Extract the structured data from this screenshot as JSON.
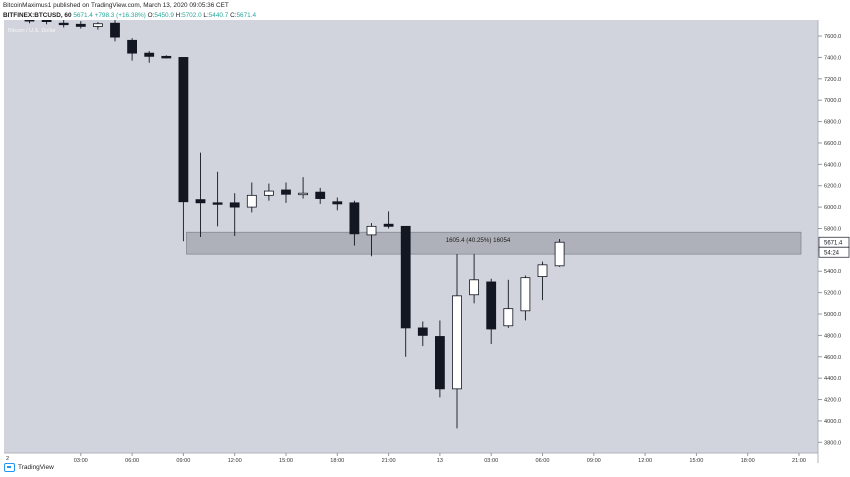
{
  "header": {
    "line1": "BitcoinMaximus1 published on TradingView.com, March 13, 2020 09:05:36 CET",
    "symbol": "BITFINEX:BTCUSD, 60",
    "last": "5671.4",
    "change": "+798.3 (+16.38%)",
    "open_label": "O:",
    "open_value": "5450.9",
    "high_label": "H:",
    "high_value": "5702.0",
    "low_label": "L:",
    "low_value": "5440.7",
    "close_label": "C:",
    "close_value": "5671.4"
  },
  "footer": {
    "brand": "TradingView"
  },
  "colors": {
    "background": "#d1d4dc",
    "bull": "#ffffff",
    "bear": "#131722",
    "zone": "#a8abb3",
    "price_tag": "#ffffff"
  },
  "chart_data": {
    "type": "candlestick",
    "title": "",
    "series_label": "Bitcoin / U.S. Dollar",
    "y_ticks": [
      3800,
      4000,
      4200,
      4400,
      4600,
      4800,
      5000,
      5200,
      5400,
      5600,
      5800,
      6000,
      6200,
      6400,
      6600,
      6800,
      7000,
      7200,
      7400,
      7600
    ],
    "y_tick_labels": [
      "3800.0",
      "4000.0",
      "4200.0",
      "4400.0",
      "4600.0",
      "4800.0",
      "5000.0",
      "5200.0",
      "5400.0",
      "5600.0",
      "5800.0",
      "6000.0",
      "6200.0",
      "6400.0",
      "6600.0",
      "6800.0",
      "7000.0",
      "7200.0",
      "7400.0",
      "7600.0"
    ],
    "ylim": [
      3700,
      7750
    ],
    "x_ticks": [
      {
        "label": "03:00",
        "index": 3
      },
      {
        "label": "06:00",
        "index": 6
      },
      {
        "label": "09:00",
        "index": 9
      },
      {
        "label": "12:00",
        "index": 12
      },
      {
        "label": "15:00",
        "index": 15
      },
      {
        "label": "18:00",
        "index": 18
      },
      {
        "label": "21:00",
        "index": 21
      },
      {
        "label": "13",
        "index": 24
      },
      {
        "label": "03:00",
        "index": 27
      },
      {
        "label": "06:00",
        "index": 30
      },
      {
        "label": "09:00",
        "index": 33
      },
      {
        "label": "12:00",
        "index": 36
      },
      {
        "label": "15:00",
        "index": 39
      },
      {
        "label": "18:00",
        "index": 42
      },
      {
        "label": "21:00",
        "index": 45
      }
    ],
    "x_start_label": "2",
    "candles": [
      {
        "o": 7780,
        "h": 7800,
        "l": 7720,
        "c": 7740
      },
      {
        "o": 7760,
        "h": 7790,
        "l": 7710,
        "c": 7735
      },
      {
        "o": 7720,
        "h": 7760,
        "l": 7680,
        "c": 7710
      },
      {
        "o": 7710,
        "h": 7740,
        "l": 7670,
        "c": 7690
      },
      {
        "o": 7690,
        "h": 7730,
        "l": 7660,
        "c": 7715
      },
      {
        "o": 7720,
        "h": 7750,
        "l": 7550,
        "c": 7590
      },
      {
        "o": 7560,
        "h": 7580,
        "l": 7370,
        "c": 7440
      },
      {
        "o": 7440,
        "h": 7460,
        "l": 7350,
        "c": 7410
      },
      {
        "o": 7410,
        "h": 7420,
        "l": 7390,
        "c": 7395
      },
      {
        "o": 7400,
        "h": 7400,
        "l": 5680,
        "c": 6050
      },
      {
        "o": 6070,
        "h": 6510,
        "l": 5720,
        "c": 6040
      },
      {
        "o": 6040,
        "h": 6330,
        "l": 5820,
        "c": 6030
      },
      {
        "o": 6040,
        "h": 6130,
        "l": 5730,
        "c": 6000
      },
      {
        "o": 6000,
        "h": 6230,
        "l": 5950,
        "c": 6110
      },
      {
        "o": 6110,
        "h": 6220,
        "l": 6060,
        "c": 6150
      },
      {
        "o": 6160,
        "h": 6230,
        "l": 6040,
        "c": 6120
      },
      {
        "o": 6120,
        "h": 6280,
        "l": 6080,
        "c": 6130
      },
      {
        "o": 6140,
        "h": 6180,
        "l": 6030,
        "c": 6080
      },
      {
        "o": 6050,
        "h": 6090,
        "l": 5970,
        "c": 6030
      },
      {
        "o": 6040,
        "h": 6060,
        "l": 5640,
        "c": 5750
      },
      {
        "o": 5740,
        "h": 5850,
        "l": 5540,
        "c": 5820
      },
      {
        "o": 5840,
        "h": 5960,
        "l": 5800,
        "c": 5820
      },
      {
        "o": 5820,
        "h": 5820,
        "l": 4600,
        "c": 4870
      },
      {
        "o": 4870,
        "h": 4930,
        "l": 4700,
        "c": 4800
      },
      {
        "o": 4790,
        "h": 4940,
        "l": 4220,
        "c": 4300
      },
      {
        "o": 4300,
        "h": 5560,
        "l": 3930,
        "c": 5170
      },
      {
        "o": 5180,
        "h": 5560,
        "l": 5100,
        "c": 5320
      },
      {
        "o": 5300,
        "h": 5330,
        "l": 4720,
        "c": 4860
      },
      {
        "o": 4890,
        "h": 5320,
        "l": 4870,
        "c": 5050
      },
      {
        "o": 5030,
        "h": 5360,
        "l": 4940,
        "c": 5340
      },
      {
        "o": 5350,
        "h": 5490,
        "l": 5130,
        "c": 5460
      },
      {
        "o": 5450.9,
        "h": 5702.0,
        "l": 5440.7,
        "c": 5671.4
      }
    ],
    "zone": {
      "from": 5560,
      "to": 5765,
      "start_index": 10,
      "end_index": 45
    },
    "zone_label": "1605.4 (40.25%) 16054",
    "last_price_label": "5671.4",
    "countdown_label": "54:24"
  }
}
